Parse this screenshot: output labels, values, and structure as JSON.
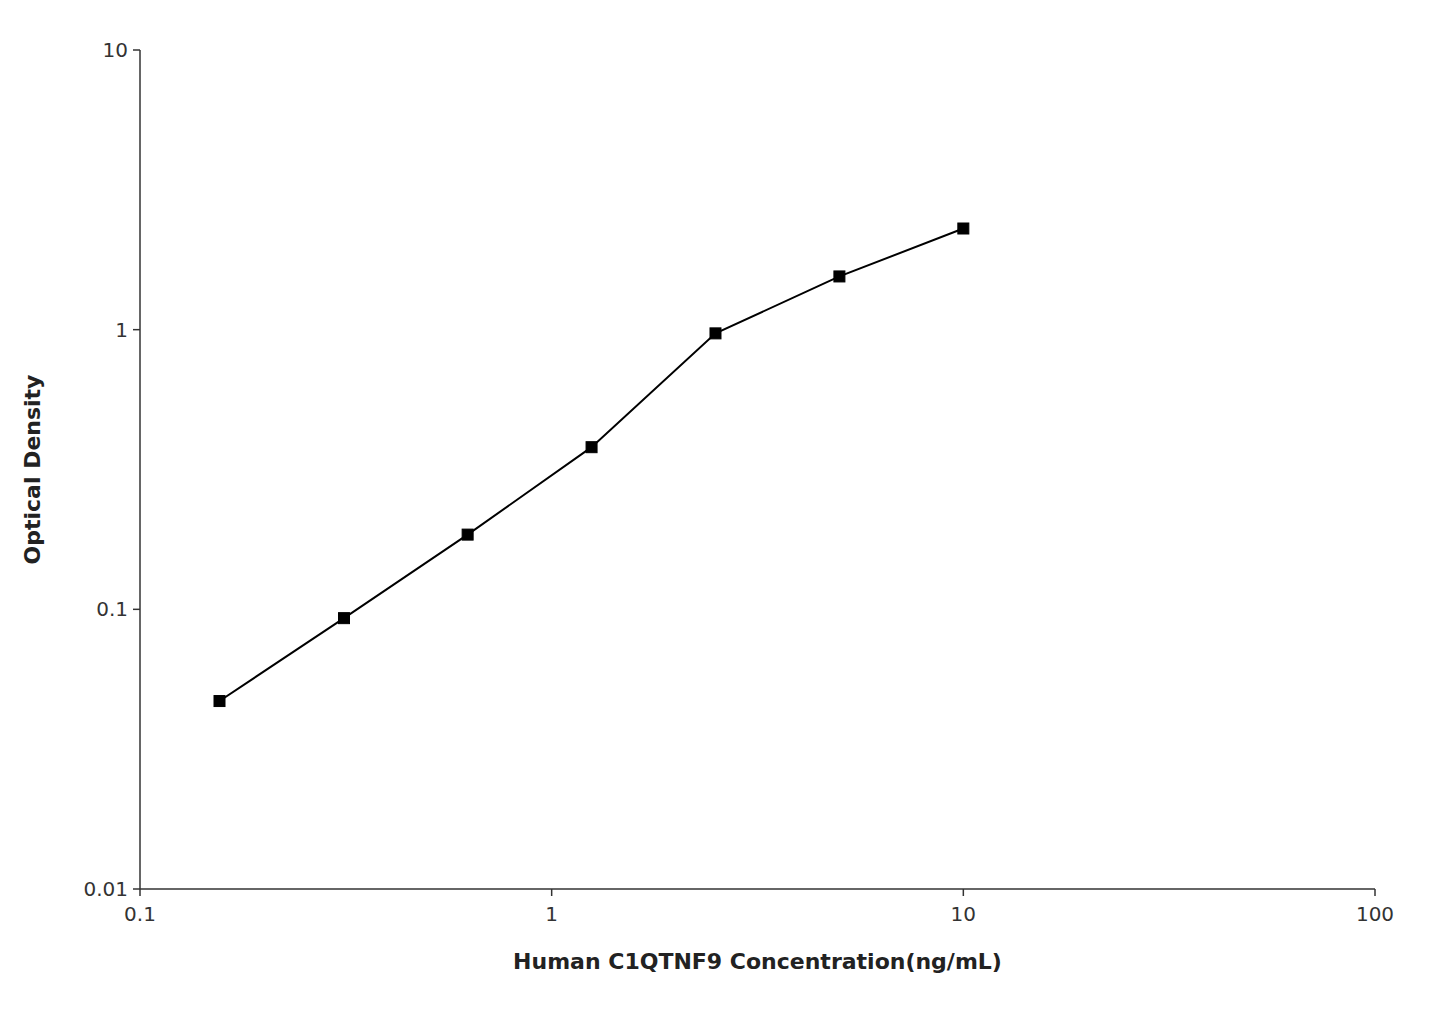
{
  "chart_data": {
    "type": "line",
    "x": [
      0.156,
      0.313,
      0.625,
      1.25,
      2.5,
      5.0,
      10.0
    ],
    "values": [
      0.047,
      0.093,
      0.185,
      0.38,
      0.97,
      1.55,
      2.3
    ],
    "color": "#000000",
    "marker": "square",
    "xlabel": "Human C1QTNF9 Concentration(ng/mL)",
    "ylabel": "Optical Density",
    "xlim": [
      0.1,
      100
    ],
    "ylim": [
      0.01,
      10
    ],
    "xticks": [
      0.1,
      1,
      10,
      100
    ],
    "yticks": [
      0.01,
      0.1,
      1,
      10
    ],
    "log": true,
    "grid": false
  }
}
